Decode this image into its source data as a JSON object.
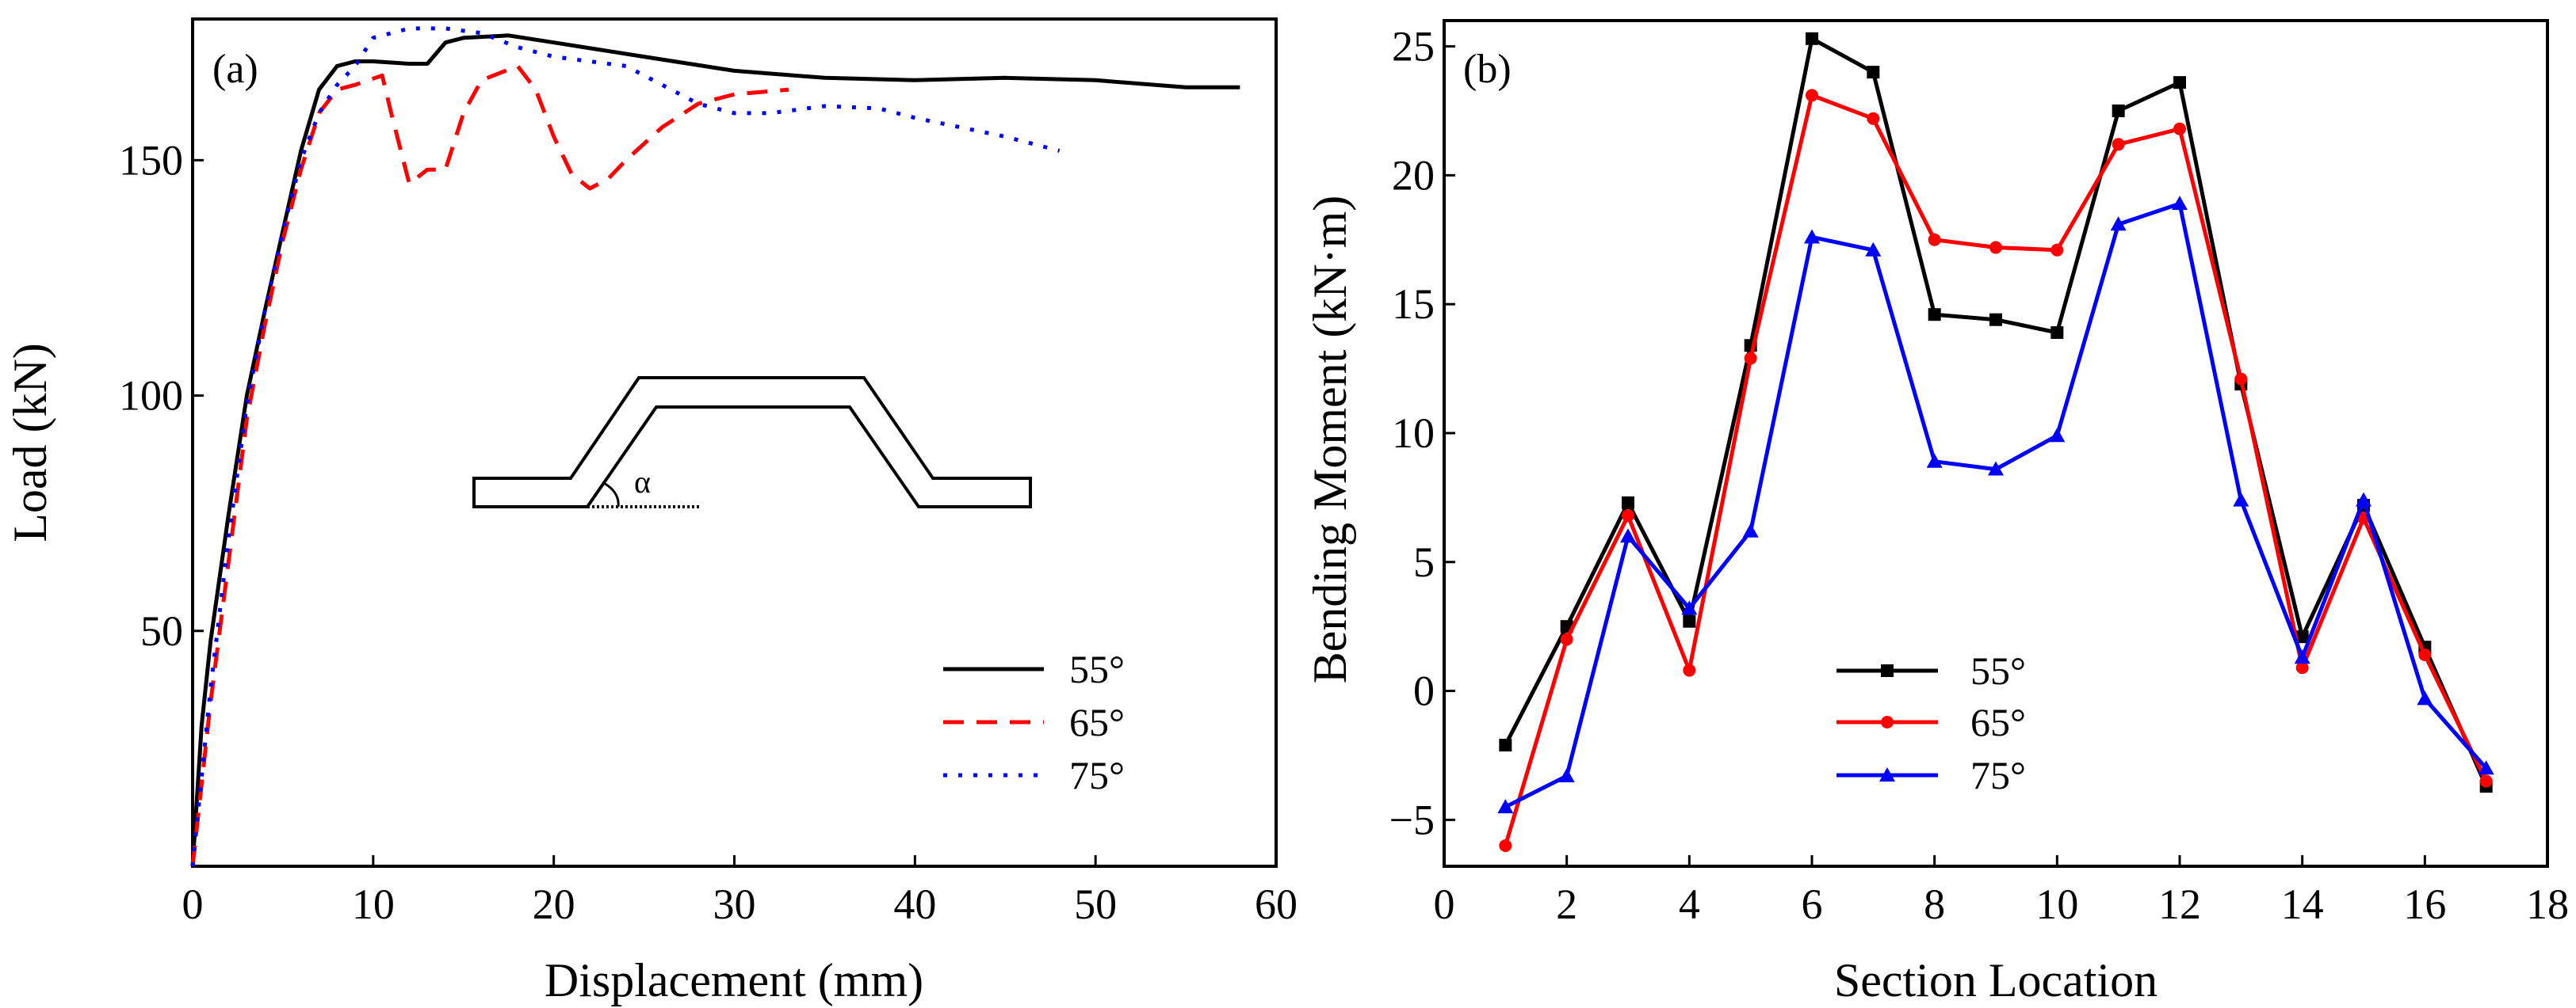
{
  "chart_data": [
    {
      "type": "line",
      "panel_label": "(a)",
      "title": "",
      "xlabel": "Displacement (mm)",
      "ylabel": "Load (kN)",
      "xlim": [
        0,
        60
      ],
      "ylim": [
        0,
        180
      ],
      "xticks": [
        0,
        10,
        20,
        30,
        40,
        50,
        60
      ],
      "yticks": [
        50,
        100,
        150
      ],
      "grid": false,
      "legend_position": "bottom-right",
      "inset_label": "α",
      "series": [
        {
          "name": "55°",
          "color": "#000000",
          "style": "solid",
          "x": [
            0,
            0.5,
            1,
            2,
            3,
            4,
            5,
            6,
            7,
            8,
            9,
            10,
            12,
            13,
            14,
            15,
            17.5,
            20,
            25,
            30,
            35,
            40,
            45,
            50,
            55,
            58
          ],
          "y": [
            0,
            30,
            48,
            75,
            100,
            118,
            135,
            152,
            165,
            170,
            171,
            171,
            170.5,
            170.5,
            175,
            176,
            176.5,
            175,
            172,
            169,
            167.5,
            167,
            167.5,
            167,
            165.5,
            165.5
          ]
        },
        {
          "name": "65°",
          "color": "#ff0000",
          "style": "dashed",
          "x": [
            0,
            1,
            2,
            3,
            4,
            5,
            6,
            7,
            8,
            9,
            10.5,
            11,
            12,
            13,
            14,
            15,
            16,
            18,
            19,
            20,
            21,
            22,
            23,
            24,
            26,
            28,
            30,
            33
          ],
          "y": [
            0,
            35,
            65,
            95,
            115,
            133,
            148,
            160,
            165,
            166,
            168,
            160,
            145,
            148,
            148,
            160,
            167,
            170,
            165,
            155,
            147,
            144,
            146,
            150,
            157,
            162,
            164,
            165
          ]
        },
        {
          "name": "75°",
          "color": "#0000ff",
          "style": "dotted",
          "x": [
            0,
            1,
            2,
            3,
            4,
            5,
            6,
            7,
            8,
            9,
            10,
            12,
            14,
            16,
            18,
            20,
            24,
            26,
            28,
            30,
            32,
            35,
            38,
            40,
            45,
            48
          ],
          "y": [
            0,
            38,
            70,
            98,
            118,
            135,
            150,
            160,
            166,
            170,
            176,
            178,
            178,
            177,
            174,
            172,
            170,
            166,
            162,
            160,
            160,
            161.5,
            161,
            159,
            155,
            152
          ]
        }
      ]
    },
    {
      "type": "line",
      "panel_label": "(b)",
      "title": "",
      "xlabel": "Section Location",
      "ylabel": "Bending Moment (kN·m)",
      "xlim": [
        0,
        18
      ],
      "ylim": [
        -6.8,
        26
      ],
      "xticks": [
        0,
        2,
        4,
        6,
        8,
        10,
        12,
        14,
        16,
        18
      ],
      "yticks": [
        -5,
        0,
        5,
        10,
        15,
        20,
        25
      ],
      "grid": false,
      "legend_position": "bottom-center",
      "x": [
        1,
        2,
        3,
        4,
        5,
        6,
        7,
        8,
        9,
        10,
        11,
        12,
        13,
        14,
        15,
        16,
        17
      ],
      "series": [
        {
          "name": "55°",
          "color": "#000000",
          "marker": "square",
          "values": [
            -2.1,
            2.5,
            7.3,
            2.7,
            13.4,
            25.3,
            24.0,
            14.6,
            14.4,
            13.9,
            22.5,
            23.6,
            11.9,
            2.1,
            7.2,
            1.7,
            -3.7
          ]
        },
        {
          "name": "65°",
          "color": "#ff0000",
          "marker": "circle",
          "values": [
            -6.0,
            2.0,
            6.8,
            0.8,
            12.9,
            23.1,
            22.2,
            17.5,
            17.2,
            17.1,
            21.2,
            21.8,
            12.1,
            0.9,
            6.7,
            1.4,
            -3.5
          ]
        },
        {
          "name": "75°",
          "color": "#0000ff",
          "marker": "triangle",
          "values": [
            -4.5,
            -3.3,
            6.0,
            3.2,
            6.2,
            17.6,
            17.1,
            8.9,
            8.6,
            9.9,
            18.1,
            18.9,
            7.4,
            1.3,
            7.4,
            -0.3,
            -3.0
          ]
        }
      ]
    }
  ]
}
